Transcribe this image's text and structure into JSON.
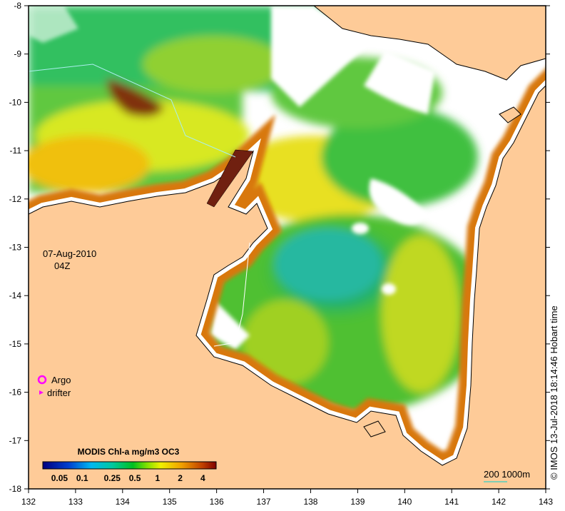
{
  "map": {
    "lon_range": [
      132,
      143
    ],
    "lat_range": [
      -8,
      -18
    ],
    "lon_ticks": [
      "132",
      "133",
      "134",
      "135",
      "136",
      "137",
      "138",
      "139",
      "140",
      "141",
      "142",
      "143"
    ],
    "lat_ticks": [
      "-8",
      "-9",
      "-10",
      "-11",
      "-12",
      "-13",
      "-14",
      "-15",
      "-16",
      "-17",
      "-18"
    ],
    "date": "07-Aug-2010",
    "time": "04Z",
    "credit": "© IMOS 13-Jul-2018 18:14:46 Hobart time",
    "colors": {
      "land": "#fecb98",
      "cloud": "#ffffff",
      "coast": "#000000"
    }
  },
  "legend": {
    "argo_label": "Argo",
    "drifter_label": "drifter",
    "argo_color": "#ff00ff"
  },
  "colorbar": {
    "title": "MODIS Chl-a mg/m3 OC3",
    "labels": [
      "0.05",
      "0.1",
      "0.25",
      "0.5",
      "1",
      "2",
      "4"
    ]
  },
  "scale": {
    "label": "200  1000m",
    "color": "#00d0d0"
  }
}
